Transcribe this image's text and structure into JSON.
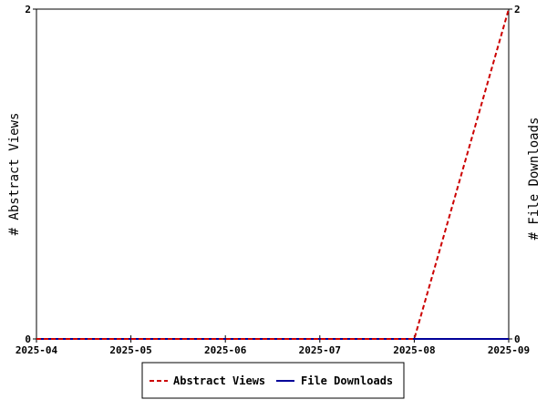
{
  "chart_data": {
    "type": "line",
    "x": [
      "2025-04",
      "2025-05",
      "2025-06",
      "2025-07",
      "2025-08",
      "2025-09"
    ],
    "series": [
      {
        "name": "Abstract Views",
        "values": [
          0,
          0,
          0,
          0,
          0,
          2
        ],
        "color": "#cc0000",
        "style": "dashed",
        "axis": "left"
      },
      {
        "name": "File Downloads",
        "values": [
          0,
          0,
          0,
          0,
          0,
          0
        ],
        "color": "#000099",
        "style": "solid",
        "axis": "right"
      }
    ],
    "ylabel_left": "# Abstract Views",
    "ylabel_right": "# File Downloads",
    "ylim_left": [
      0,
      2
    ],
    "ylim_right": [
      0,
      2
    ],
    "yticks_left": [
      "0",
      "2"
    ],
    "yticks_right": [
      "0",
      "2"
    ],
    "grid": false,
    "legend_position": "bottom-center"
  }
}
